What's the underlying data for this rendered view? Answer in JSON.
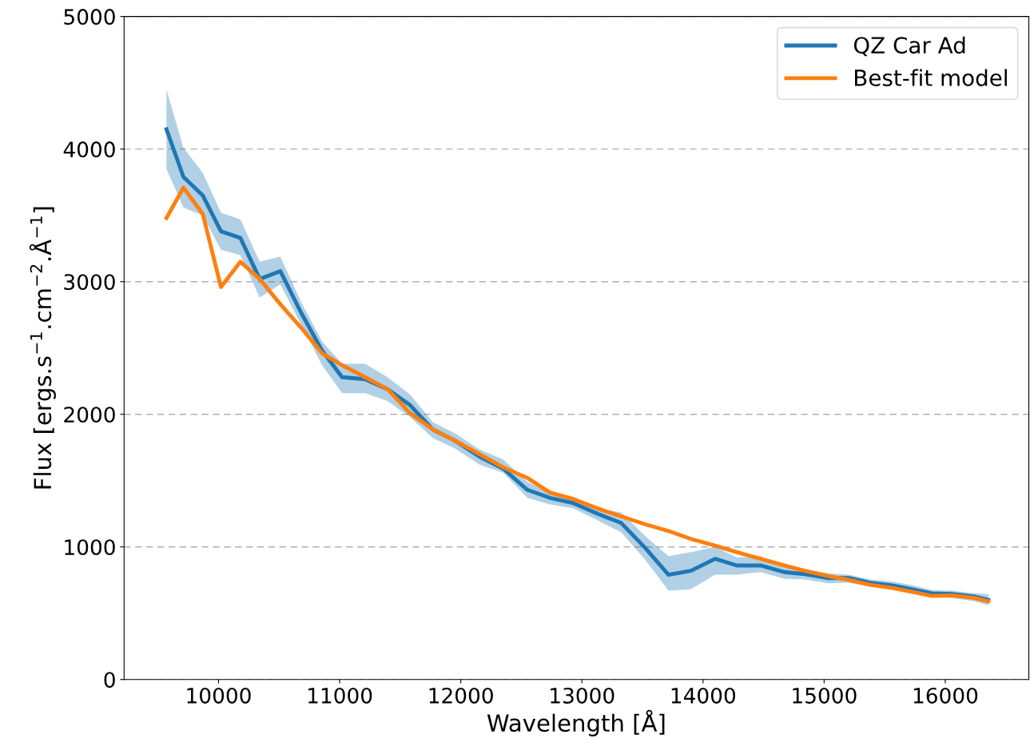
{
  "chart_data": {
    "type": "line",
    "xlabel": "Wavelength [Å]",
    "ylabel": "Flux [ergs.s$^{−1}$.cm$^{−2}$.Å$^{−1}$]",
    "x": [
      9570,
      9710,
      9870,
      10020,
      10180,
      10340,
      10510,
      10685,
      10855,
      11020,
      11210,
      11395,
      11580,
      11770,
      11955,
      12155,
      12350,
      12550,
      12735,
      12930,
      13130,
      13325,
      13525,
      13715,
      13900,
      14100,
      14280,
      14475,
      14670,
      14840,
      15035,
      15205,
      15380,
      15560,
      15730,
      15890,
      16055,
      16240,
      16355
    ],
    "series": [
      {
        "name": "QZ Car Ad",
        "color": "#1f77b4",
        "values": [
          4150,
          3790,
          3650,
          3380,
          3330,
          3020,
          3080,
          2760,
          2480,
          2280,
          2265,
          2190,
          2070,
          1885,
          1800,
          1680,
          1590,
          1430,
          1370,
          1330,
          1250,
          1180,
          990,
          790,
          820,
          910,
          860,
          860,
          810,
          795,
          765,
          765,
          730,
          710,
          680,
          650,
          645,
          625,
          600
        ],
        "lower": [
          3850,
          3560,
          3500,
          3240,
          3200,
          2880,
          2980,
          2670,
          2370,
          2160,
          2160,
          2100,
          1980,
          1820,
          1740,
          1620,
          1560,
          1370,
          1320,
          1290,
          1200,
          1110,
          900,
          670,
          680,
          790,
          790,
          810,
          760,
          755,
          725,
          730,
          700,
          685,
          650,
          620,
          615,
          590,
          560
        ],
        "upper": [
          4450,
          4010,
          3820,
          3520,
          3470,
          3150,
          3190,
          2840,
          2550,
          2380,
          2380,
          2280,
          2150,
          1940,
          1855,
          1735,
          1660,
          1490,
          1410,
          1380,
          1290,
          1260,
          1080,
          930,
          960,
          1000,
          920,
          930,
          850,
          830,
          800,
          790,
          755,
          740,
          710,
          675,
          670,
          650,
          645
        ]
      },
      {
        "name": "Best-fit model",
        "color": "#ff7f0e",
        "values": [
          3480,
          3710,
          3510,
          2960,
          3150,
          3020,
          2830,
          2650,
          2460,
          2370,
          2280,
          2190,
          2010,
          1885,
          1800,
          1700,
          1600,
          1520,
          1410,
          1360,
          1290,
          1230,
          1170,
          1120,
          1060,
          1010,
          960,
          910,
          860,
          820,
          780,
          750,
          715,
          690,
          660,
          630,
          635,
          615,
          590
        ]
      }
    ],
    "xlim": [
      9220,
      16690
    ],
    "xticks": [
      10000,
      11000,
      12000,
      13000,
      14000,
      15000,
      16000
    ],
    "ylim": [
      0,
      5000
    ],
    "yticks": [
      0,
      1000,
      2000,
      3000,
      4000,
      5000
    ],
    "grid": "y",
    "legend": "top right"
  }
}
